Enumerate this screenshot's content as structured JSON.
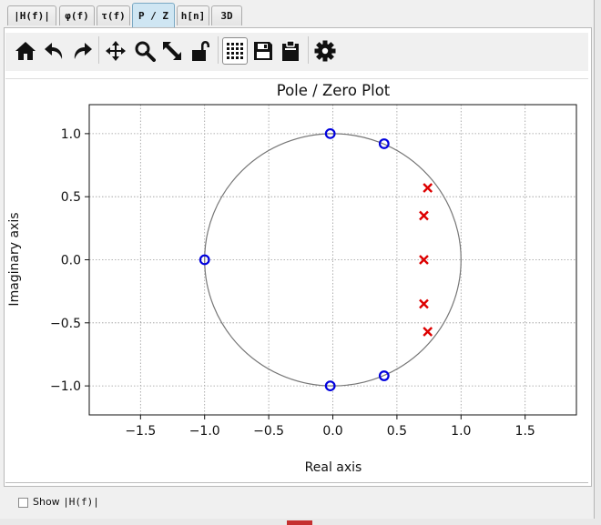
{
  "tabs": [
    {
      "label": "|H(f)|",
      "active": false
    },
    {
      "label": "φ(f)",
      "active": false
    },
    {
      "label": "τ(f)",
      "active": false
    },
    {
      "label": "P / Z",
      "active": true
    },
    {
      "label": "h[n]",
      "active": false
    },
    {
      "label": "3D",
      "active": false
    }
  ],
  "toolbar": {
    "icons": [
      "home-icon",
      "undo-icon",
      "redo-icon",
      "pan-icon",
      "zoom-icon",
      "autoscale-icon",
      "lock-icon",
      "grid-icon",
      "save-icon",
      "clipboard-icon",
      "settings-icon"
    ],
    "grid_active": true
  },
  "bottom": {
    "show_label": "Show ",
    "show_mono": "|H(f)|",
    "show_checked": false
  },
  "colors": {
    "zeros": "#0000dd",
    "poles": "#dd0000",
    "unit_circle": "#777777",
    "active_tab": "#cfe6f3"
  },
  "chart_data": {
    "type": "scatter",
    "title": "Pole / Zero Plot",
    "xlabel": "Real axis",
    "ylabel": "Imaginary axis",
    "xlim": [
      -1.9,
      1.9
    ],
    "ylim": [
      -1.23,
      1.23
    ],
    "xticks": [
      -1.5,
      -1.0,
      -0.5,
      0.0,
      0.5,
      1.0,
      1.5
    ],
    "xtick_labels": [
      "−1.5",
      "−1.0",
      "−0.5",
      "0.0",
      "0.5",
      "1.0",
      "1.5"
    ],
    "yticks": [
      -1.0,
      -0.5,
      0.0,
      0.5,
      1.0
    ],
    "ytick_labels": [
      "−1.0",
      "−0.5",
      "0.0",
      "0.5",
      "1.0"
    ],
    "grid": true,
    "unit_circle": true,
    "zeros": [
      {
        "x": -0.02,
        "y": 1.0
      },
      {
        "x": 0.4,
        "y": 0.92
      },
      {
        "x": -1.0,
        "y": 0.0
      },
      {
        "x": -0.02,
        "y": -1.0
      },
      {
        "x": 0.4,
        "y": -0.92
      }
    ],
    "poles": [
      {
        "x": 0.74,
        "y": 0.57
      },
      {
        "x": 0.71,
        "y": 0.35
      },
      {
        "x": 0.71,
        "y": 0.0
      },
      {
        "x": 0.71,
        "y": -0.35
      },
      {
        "x": 0.74,
        "y": -0.57
      }
    ]
  }
}
